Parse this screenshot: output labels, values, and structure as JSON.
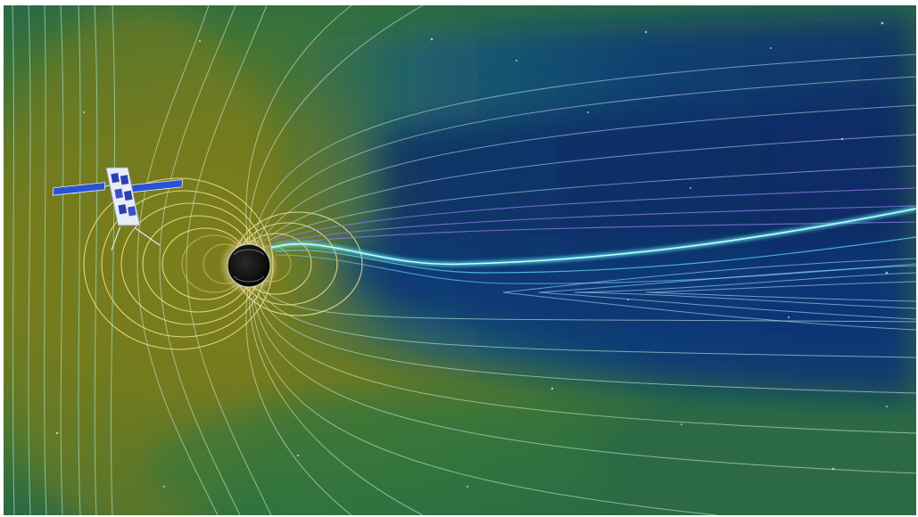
{
  "scene": {
    "subject": "magnetosphere-visualization",
    "objects": [
      "satellite",
      "earth",
      "magnetic-field-lines",
      "magnetotail",
      "starfield"
    ]
  },
  "colors": {
    "sunward_field": "#6d7b1c",
    "outer_field": "#2f6e45",
    "tail_core": "#0c2a66",
    "tail_mid": "#16507a",
    "current_sheet": "#5ff0f5",
    "field_line_near": "#f2dc8a",
    "field_line_far": "#cfe8d6",
    "lobe_line": "#8a7be8",
    "planet_dark": "#0a0a0a",
    "solar_panel": "#2a52d6",
    "satellite_body": "#e8ecf5"
  }
}
